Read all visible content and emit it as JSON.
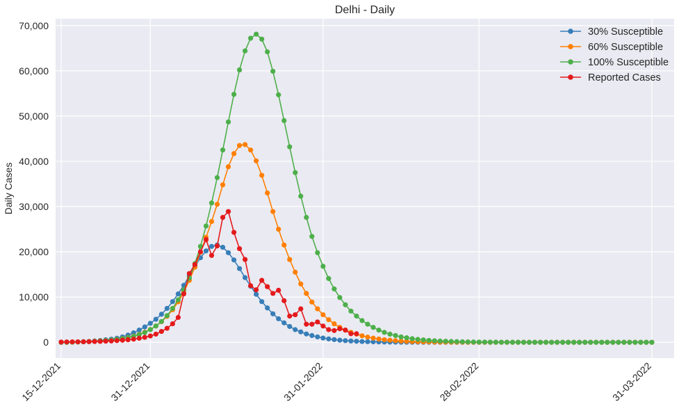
{
  "chart_data": {
    "type": "line",
    "title": "Delhi - Daily",
    "xlabel": "",
    "ylabel": "Daily Cases",
    "x_start": "15-12-2021",
    "x_end": "31-03-2022",
    "xlim": [
      "14-12-2021",
      "04-04-2022"
    ],
    "ylim": [
      -3500,
      71500
    ],
    "x_ticks": [
      "15-12-2021",
      "31-12-2021",
      "31-01-2022",
      "28-02-2022",
      "31-03-2022"
    ],
    "y_ticks": [
      0,
      10000,
      20000,
      30000,
      40000,
      50000,
      60000,
      70000
    ],
    "y_tick_labels": [
      "0",
      "10,000",
      "20,000",
      "30,000",
      "40,000",
      "50,000",
      "60,000",
      "70,000"
    ],
    "grid": true,
    "background": "#eaeaf2",
    "legend_position": "top-right",
    "marker": "circle",
    "series": [
      {
        "name": "30% Susceptible",
        "color": "#377eb8",
        "values": [
          0,
          0,
          50,
          100,
          150,
          200,
          300,
          400,
          550,
          700,
          900,
          1200,
          1600,
          2100,
          2700,
          3400,
          4200,
          5100,
          6200,
          7500,
          9000,
          10700,
          12600,
          14700,
          16800,
          18700,
          20200,
          21200,
          21500,
          21000,
          19800,
          18200,
          16300,
          14300,
          12400,
          10600,
          9000,
          7600,
          6300,
          5200,
          4300,
          3500,
          2800,
          2300,
          1850,
          1500,
          1200,
          950,
          750,
          600,
          470,
          370,
          290,
          230,
          180,
          140,
          110,
          85,
          65,
          50,
          40,
          30,
          25,
          20,
          15,
          10,
          8,
          6,
          5,
          4,
          3,
          2,
          2,
          1,
          1,
          1,
          1,
          0,
          0,
          0,
          0,
          0,
          0,
          0,
          0,
          0,
          0,
          0,
          0,
          0,
          0,
          0,
          0,
          0,
          0,
          0,
          0,
          0,
          0,
          0,
          0,
          0,
          0,
          0,
          0,
          0,
          0
        ]
      },
      {
        "name": "60% Susceptible",
        "color": "#ff7f00",
        "values": [
          0,
          0,
          40,
          80,
          120,
          170,
          230,
          300,
          390,
          500,
          650,
          840,
          1080,
          1380,
          1760,
          2240,
          2850,
          3600,
          4550,
          5750,
          7200,
          8950,
          11100,
          13700,
          16600,
          19900,
          23200,
          26700,
          30500,
          34800,
          38800,
          41700,
          43500,
          43700,
          42500,
          40100,
          36900,
          33000,
          28900,
          25000,
          21500,
          18300,
          15500,
          12900,
          10800,
          8900,
          7400,
          6100,
          5000,
          4100,
          3300,
          2700,
          2200,
          1800,
          1450,
          1150,
          920,
          730,
          580,
          460,
          360,
          280,
          220,
          170,
          130,
          100,
          80,
          60,
          45,
          35,
          27,
          20,
          15,
          12,
          9,
          7,
          5,
          4,
          3,
          2,
          2,
          1,
          1,
          1,
          1,
          0,
          0,
          0,
          0,
          0,
          0,
          0,
          0,
          0,
          0,
          0,
          0,
          0,
          0,
          0,
          0,
          0,
          0,
          0,
          0,
          0,
          0
        ]
      },
      {
        "name": "100% Susceptible",
        "color": "#4daf4a",
        "values": [
          0,
          0,
          30,
          60,
          100,
          150,
          210,
          280,
          370,
          480,
          620,
          800,
          1030,
          1320,
          1700,
          2180,
          2800,
          3600,
          4600,
          5900,
          7500,
          9400,
          11600,
          14200,
          17400,
          21200,
          25700,
          30800,
          36400,
          42500,
          48700,
          54800,
          60200,
          64400,
          67200,
          68100,
          67000,
          64200,
          59900,
          54700,
          49000,
          43200,
          37500,
          32300,
          27600,
          23400,
          19800,
          16800,
          14100,
          11800,
          9900,
          8300,
          6900,
          5800,
          4800,
          4000,
          3300,
          2700,
          2200,
          1800,
          1500,
          1200,
          1000,
          800,
          650,
          530,
          430,
          350,
          280,
          230,
          185,
          150,
          120,
          95,
          75,
          60,
          48,
          38,
          30,
          24,
          19,
          15,
          12,
          9,
          7,
          5,
          4,
          3,
          2,
          2,
          1,
          1,
          1,
          0,
          0,
          0,
          0,
          0,
          0,
          0,
          0,
          0,
          0,
          0,
          0,
          0,
          0
        ]
      },
      {
        "name": "Reported Cases",
        "color": "#e41a1c",
        "values": [
          60,
          80,
          90,
          100,
          120,
          140,
          170,
          200,
          250,
          300,
          380,
          460,
          570,
          700,
          900,
          1100,
          1400,
          1800,
          2400,
          3100,
          4100,
          5500,
          10700,
          15200,
          17200,
          20000,
          22700,
          19200,
          21300,
          27600,
          28900,
          24300,
          20700,
          18300,
          12500,
          11600,
          13700,
          12300,
          10800,
          11500,
          9200,
          5800,
          6100,
          7400,
          4000,
          4000,
          4500,
          3600,
          2800,
          2600,
          3000,
          2700,
          1900,
          1900
        ]
      }
    ],
    "legend": [
      "30% Susceptible",
      "60% Susceptible",
      "100% Susceptible",
      "Reported Cases"
    ]
  }
}
